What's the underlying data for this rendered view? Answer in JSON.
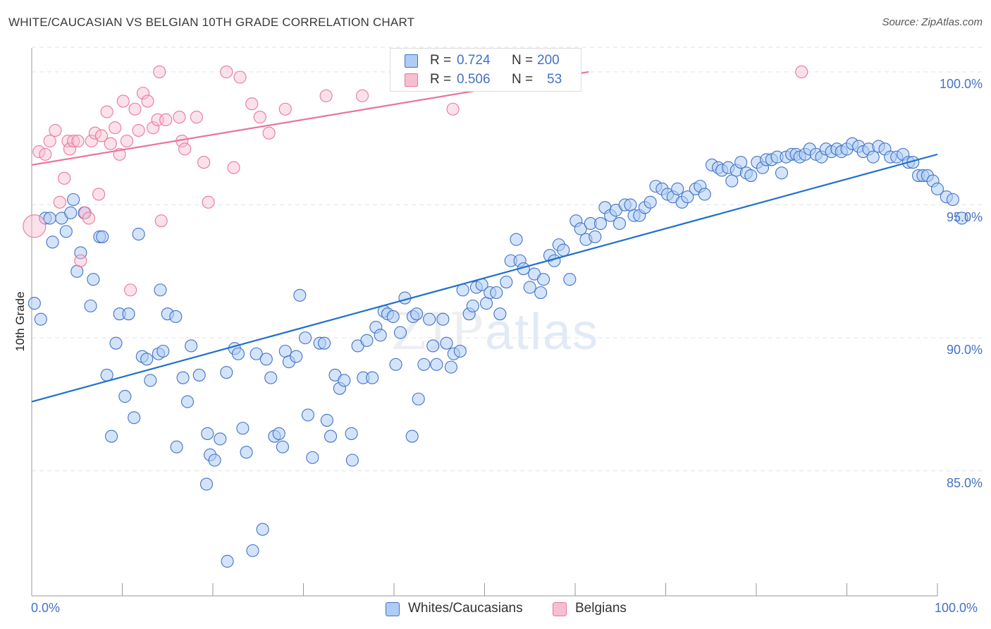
{
  "title": "WHITE/CAUCASIAN VS BELGIAN 10TH GRADE CORRELATION CHART",
  "source": "Source: ZipAtlas.com",
  "watermark": {
    "part1": "ZIP",
    "part2": "atlas"
  },
  "colors": {
    "blue": "#4472c4",
    "blue_fill": "#aecdf5",
    "blue_line": "#1f6fcf",
    "pink": "#e8789a",
    "pink_fill": "#f6bfd0",
    "pink_line": "#e8759a"
  },
  "stats": {
    "rows": [
      {
        "r_label": "R = ",
        "r_value": "0.724",
        "n_label": "N = ",
        "n_value": "200"
      },
      {
        "r_label": "R = ",
        "r_value": "0.506",
        "n_label": "N = ",
        "n_value": "53"
      }
    ]
  },
  "legend": [
    {
      "label": "Whites/Caucasians"
    },
    {
      "label": "Belgians"
    }
  ],
  "chart_data": {
    "type": "scatter",
    "title": "WHITE/CAUCASIAN VS BELGIAN 10TH GRADE CORRELATION CHART",
    "xlabel": "",
    "ylabel": "10th Grade",
    "xlim": [
      0,
      100
    ],
    "ylim": [
      80.3,
      100.9
    ],
    "x_tick_labels": [
      "0.0%",
      "100.0%"
    ],
    "y_ticks": [
      85,
      90,
      95,
      100
    ],
    "y_tick_labels": [
      "85.0%",
      "90.0%",
      "95.0%",
      "100.0%"
    ],
    "grid": "horizontal dashed",
    "legend_position": "bottom-center",
    "series": [
      {
        "name": "Whites/Caucasians",
        "r": 0.724,
        "n": 200,
        "trend": {
          "x": [
            0,
            100
          ],
          "y": [
            87.6,
            96.9
          ]
        },
        "points": [
          [
            0.3,
            91.3
          ],
          [
            1,
            90.7
          ],
          [
            1.5,
            94.5
          ],
          [
            2,
            94.5
          ],
          [
            2.3,
            93.6
          ],
          [
            3.3,
            94.5
          ],
          [
            3.8,
            94
          ],
          [
            4.3,
            94.7
          ],
          [
            4.6,
            95.2
          ],
          [
            5,
            92.5
          ],
          [
            5.4,
            93.2
          ],
          [
            5.8,
            94.7
          ],
          [
            6.5,
            91.2
          ],
          [
            6.8,
            92.2
          ],
          [
            7.5,
            93.8
          ],
          [
            7.8,
            93.8
          ],
          [
            8.3,
            88.6
          ],
          [
            8.8,
            86.3
          ],
          [
            9.3,
            89.8
          ],
          [
            9.7,
            90.9
          ],
          [
            10.3,
            87.8
          ],
          [
            10.7,
            90.9
          ],
          [
            11.3,
            87
          ],
          [
            11.8,
            93.9
          ],
          [
            12.2,
            89.3
          ],
          [
            12.7,
            89.2
          ],
          [
            13.1,
            88.4
          ],
          [
            14,
            89.4
          ],
          [
            14.5,
            89.5
          ],
          [
            14.2,
            91.8
          ],
          [
            15,
            90.9
          ],
          [
            15.9,
            90.8
          ],
          [
            16,
            85.9
          ],
          [
            16.7,
            88.5
          ],
          [
            17.2,
            87.6
          ],
          [
            17.6,
            89.7
          ],
          [
            18.5,
            88.6
          ],
          [
            19.3,
            84.5
          ],
          [
            19.4,
            86.4
          ],
          [
            19.7,
            85.6
          ],
          [
            20.2,
            85.4
          ],
          [
            20.8,
            86.2
          ],
          [
            21.5,
            88.7
          ],
          [
            21.6,
            81.6
          ],
          [
            22.4,
            89.6
          ],
          [
            22.8,
            89.4
          ],
          [
            23.3,
            86.6
          ],
          [
            23.7,
            85.7
          ],
          [
            24.4,
            82
          ],
          [
            24.8,
            89.4
          ],
          [
            25.5,
            82.8
          ],
          [
            25.9,
            89.2
          ],
          [
            26.4,
            88.5
          ],
          [
            26.8,
            86.3
          ],
          [
            27.3,
            86.4
          ],
          [
            27.7,
            85.9
          ],
          [
            28,
            89.5
          ],
          [
            28.4,
            89.1
          ],
          [
            29.2,
            89.3
          ],
          [
            29.6,
            91.6
          ],
          [
            30.2,
            90
          ],
          [
            30.5,
            87.1
          ],
          [
            31,
            85.5
          ],
          [
            31.8,
            89.8
          ],
          [
            32.3,
            89.8
          ],
          [
            32.6,
            86.9
          ],
          [
            33,
            86.3
          ],
          [
            33.5,
            88.6
          ],
          [
            34,
            88.1
          ],
          [
            34.5,
            88.4
          ],
          [
            35.3,
            86.4
          ],
          [
            35.4,
            85.4
          ],
          [
            36,
            89.7
          ],
          [
            36.6,
            88.5
          ],
          [
            37,
            89.9
          ],
          [
            37.6,
            88.5
          ],
          [
            38,
            90.4
          ],
          [
            38.5,
            90.1
          ],
          [
            38.9,
            91
          ],
          [
            39.3,
            90.9
          ],
          [
            39.9,
            90.8
          ],
          [
            40.2,
            89
          ],
          [
            40.7,
            90.2
          ],
          [
            41.2,
            91.5
          ],
          [
            42,
            86.3
          ],
          [
            42.1,
            90.8
          ],
          [
            42.5,
            90.9
          ],
          [
            42.7,
            87.7
          ],
          [
            43.3,
            89
          ],
          [
            43.9,
            90.7
          ],
          [
            44.3,
            89.7
          ],
          [
            44.7,
            89
          ],
          [
            45.4,
            90.7
          ],
          [
            45.8,
            89.8
          ],
          [
            46.3,
            88.9
          ],
          [
            46.6,
            89.4
          ],
          [
            47.3,
            89.5
          ],
          [
            47.6,
            91.8
          ],
          [
            48.3,
            90.9
          ],
          [
            48.7,
            91.2
          ],
          [
            49.1,
            91.9
          ],
          [
            49.7,
            92
          ],
          [
            50.2,
            91.3
          ],
          [
            50.6,
            91.7
          ],
          [
            51.3,
            91.7
          ],
          [
            51.7,
            90.9
          ],
          [
            52.4,
            92.1
          ],
          [
            52.9,
            92.9
          ],
          [
            53.5,
            93.7
          ],
          [
            53.9,
            92.9
          ],
          [
            54.3,
            92.6
          ],
          [
            55,
            91.9
          ],
          [
            55.5,
            92.4
          ],
          [
            56.2,
            91.7
          ],
          [
            56.5,
            92.2
          ],
          [
            57.2,
            93.1
          ],
          [
            57.7,
            92.9
          ],
          [
            58.2,
            93.5
          ],
          [
            58.7,
            93.3
          ],
          [
            59.4,
            92.2
          ],
          [
            60.1,
            94.4
          ],
          [
            60.6,
            94.1
          ],
          [
            61.2,
            93.7
          ],
          [
            61.7,
            94.3
          ],
          [
            62.2,
            93.8
          ],
          [
            62.8,
            94.3
          ],
          [
            63.3,
            94.9
          ],
          [
            63.9,
            94.6
          ],
          [
            64.5,
            94.8
          ],
          [
            64.9,
            94.3
          ],
          [
            65.5,
            95
          ],
          [
            66.1,
            95
          ],
          [
            66.5,
            94.6
          ],
          [
            67.1,
            94.6
          ],
          [
            67.7,
            94.9
          ],
          [
            68.3,
            95.1
          ],
          [
            68.9,
            95.7
          ],
          [
            69.6,
            95.6
          ],
          [
            70.2,
            95.4
          ],
          [
            70.8,
            95.3
          ],
          [
            71.3,
            95.6
          ],
          [
            71.8,
            95.1
          ],
          [
            72.4,
            95.3
          ],
          [
            73.3,
            95.6
          ],
          [
            73.8,
            95.7
          ],
          [
            74.3,
            95.4
          ],
          [
            75.1,
            96.5
          ],
          [
            75.8,
            96.4
          ],
          [
            76.2,
            96.3
          ],
          [
            76.9,
            96.4
          ],
          [
            77.3,
            95.9
          ],
          [
            77.8,
            96.3
          ],
          [
            78.3,
            96.6
          ],
          [
            78.9,
            96.2
          ],
          [
            79.4,
            96.1
          ],
          [
            80.1,
            96.6
          ],
          [
            80.7,
            96.4
          ],
          [
            81.1,
            96.7
          ],
          [
            81.7,
            96.7
          ],
          [
            82.3,
            96.8
          ],
          [
            82.8,
            96.2
          ],
          [
            83.3,
            96.8
          ],
          [
            83.9,
            96.9
          ],
          [
            84.4,
            96.9
          ],
          [
            84.8,
            96.8
          ],
          [
            85.4,
            96.9
          ],
          [
            85.9,
            97.1
          ],
          [
            86.6,
            96.9
          ],
          [
            87.2,
            96.8
          ],
          [
            87.7,
            97.1
          ],
          [
            88.3,
            97
          ],
          [
            88.9,
            97.1
          ],
          [
            89.4,
            97
          ],
          [
            90,
            97.1
          ],
          [
            90.6,
            97.3
          ],
          [
            91.3,
            97.2
          ],
          [
            91.8,
            97
          ],
          [
            92.4,
            97.1
          ],
          [
            92.9,
            96.8
          ],
          [
            93.5,
            97.2
          ],
          [
            94.2,
            97.1
          ],
          [
            94.8,
            96.8
          ],
          [
            95.5,
            96.8
          ],
          [
            96.2,
            96.9
          ],
          [
            96.8,
            96.6
          ],
          [
            97.3,
            96.6
          ],
          [
            97.9,
            96.1
          ],
          [
            98.4,
            96.1
          ],
          [
            98.9,
            96.1
          ],
          [
            99.5,
            95.9
          ],
          [
            100,
            95.6
          ],
          [
            101,
            95.3
          ],
          [
            101.7,
            95.2
          ],
          [
            102.7,
            94.5
          ]
        ]
      },
      {
        "name": "Belgians",
        "r": 0.506,
        "n": 53,
        "trend": {
          "x": [
            0,
            61.5
          ],
          "y": [
            96.5,
            100
          ]
        },
        "points": [
          [
            0.3,
            94.2
          ],
          [
            0.8,
            97
          ],
          [
            1.5,
            96.9
          ],
          [
            2,
            97.4
          ],
          [
            2.6,
            97.8
          ],
          [
            3.1,
            95.1
          ],
          [
            3.6,
            96
          ],
          [
            4,
            97.4
          ],
          [
            4.2,
            97.1
          ],
          [
            4.6,
            97.4
          ],
          [
            5.1,
            97.4
          ],
          [
            5.4,
            92.9
          ],
          [
            5.9,
            94.7
          ],
          [
            6.3,
            94.5
          ],
          [
            6.6,
            97.4
          ],
          [
            7,
            97.7
          ],
          [
            7.4,
            95.4
          ],
          [
            7.7,
            97.6
          ],
          [
            8.3,
            98.5
          ],
          [
            8.7,
            97.3
          ],
          [
            9.2,
            97.9
          ],
          [
            9.7,
            96.9
          ],
          [
            10.1,
            98.9
          ],
          [
            10.5,
            97.4
          ],
          [
            10.9,
            91.8
          ],
          [
            11.4,
            98.6
          ],
          [
            11.8,
            97.8
          ],
          [
            12.3,
            99.2
          ],
          [
            12.8,
            98.9
          ],
          [
            13.4,
            97.9
          ],
          [
            13.9,
            98.2
          ],
          [
            14.1,
            100
          ],
          [
            14.3,
            94.4
          ],
          [
            14.8,
            98.2
          ],
          [
            16.3,
            98.3
          ],
          [
            16.6,
            97.4
          ],
          [
            16.9,
            97.1
          ],
          [
            18.2,
            98.3
          ],
          [
            19,
            96.6
          ],
          [
            19.5,
            95.1
          ],
          [
            21.5,
            100
          ],
          [
            22.3,
            96.4
          ],
          [
            23,
            99.8
          ],
          [
            24.3,
            98.8
          ],
          [
            25.2,
            98.3
          ],
          [
            26.2,
            97.7
          ],
          [
            28,
            98.6
          ],
          [
            32.5,
            99.1
          ],
          [
            36.5,
            99.1
          ],
          [
            46.5,
            98.6
          ],
          [
            48,
            100
          ],
          [
            51,
            100
          ],
          [
            85,
            100
          ]
        ]
      }
    ]
  }
}
